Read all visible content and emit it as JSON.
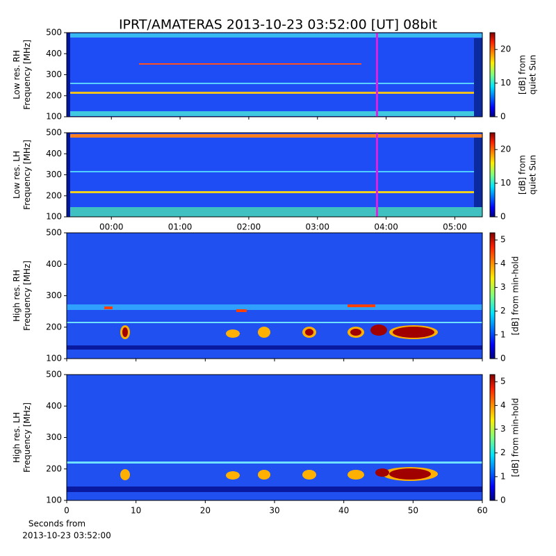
{
  "title": "IPRT/AMATERAS 2013-10-23 03:52:00 [UT]   08bit",
  "chart_data": [
    {
      "type": "heatmap",
      "ylabel": [
        "Low res. RH",
        "Frequency [MHz]"
      ],
      "xlim": [
        -0.65,
        5.4
      ],
      "xticks": [
        0,
        1,
        2,
        3,
        4,
        5
      ],
      "show_xtick_labels": false,
      "ylim": [
        100,
        500
      ],
      "yticks": [
        100,
        200,
        300,
        400,
        500
      ],
      "vlines": [
        {
          "x": 3.867,
          "color": "#e020e0"
        }
      ],
      "colorbar": {
        "label": [
          "[dB] from",
          "quiet Sun"
        ],
        "lim": [
          0,
          25
        ],
        "ticks": [
          0,
          10,
          20
        ],
        "colormap": "jet"
      }
    },
    {
      "type": "heatmap",
      "ylabel": [
        "Low res. LH",
        "Frequency [MHz]"
      ],
      "xlim": [
        -0.65,
        5.4
      ],
      "xticks": [
        {
          "value": 0,
          "label": "00:00"
        },
        {
          "value": 1,
          "label": "01:00"
        },
        {
          "value": 2,
          "label": "02:00"
        },
        {
          "value": 3,
          "label": "03:00"
        },
        {
          "value": 4,
          "label": "04:00"
        },
        {
          "value": 5,
          "label": "05:00"
        }
      ],
      "show_xtick_labels": true,
      "ylim": [
        100,
        500
      ],
      "yticks": [
        100,
        200,
        300,
        400,
        500
      ],
      "vlines": [
        {
          "x": 3.867,
          "color": "#e020e0"
        }
      ],
      "colorbar": {
        "label": [
          "[dB] from",
          "quiet Sun"
        ],
        "lim": [
          0,
          25
        ],
        "ticks": [
          0,
          10,
          20
        ],
        "colormap": "jet"
      }
    },
    {
      "type": "heatmap",
      "ylabel": [
        "High res. RH",
        "Frequency [MHz]"
      ],
      "xlim": [
        0,
        60
      ],
      "xticks": [
        0,
        10,
        20,
        30,
        40,
        50,
        60
      ],
      "show_xtick_labels": false,
      "ylim": [
        100,
        500
      ],
      "yticks": [
        100,
        200,
        300,
        400,
        500
      ],
      "colorbar": {
        "label": [
          "[dB] from min-hold"
        ],
        "lim": [
          0,
          5.3
        ],
        "ticks": [
          0,
          1,
          2,
          3,
          4,
          5
        ],
        "colormap": "jet"
      }
    },
    {
      "type": "heatmap",
      "ylabel": [
        "High res. LH",
        "Frequency [MHz]"
      ],
      "xlabel": [
        "Seconds from",
        "2013-10-23 03:52:00"
      ],
      "xlim": [
        0,
        60
      ],
      "xticks": [
        0,
        10,
        20,
        30,
        40,
        50,
        60
      ],
      "show_xtick_labels": true,
      "ylim": [
        100,
        500
      ],
      "yticks": [
        100,
        200,
        300,
        400,
        500
      ],
      "colorbar": {
        "label": [
          "[dB] from min-hold"
        ],
        "lim": [
          0,
          5.3
        ],
        "ticks": [
          0,
          1,
          2,
          3,
          4,
          5
        ],
        "colormap": "jet"
      }
    }
  ]
}
